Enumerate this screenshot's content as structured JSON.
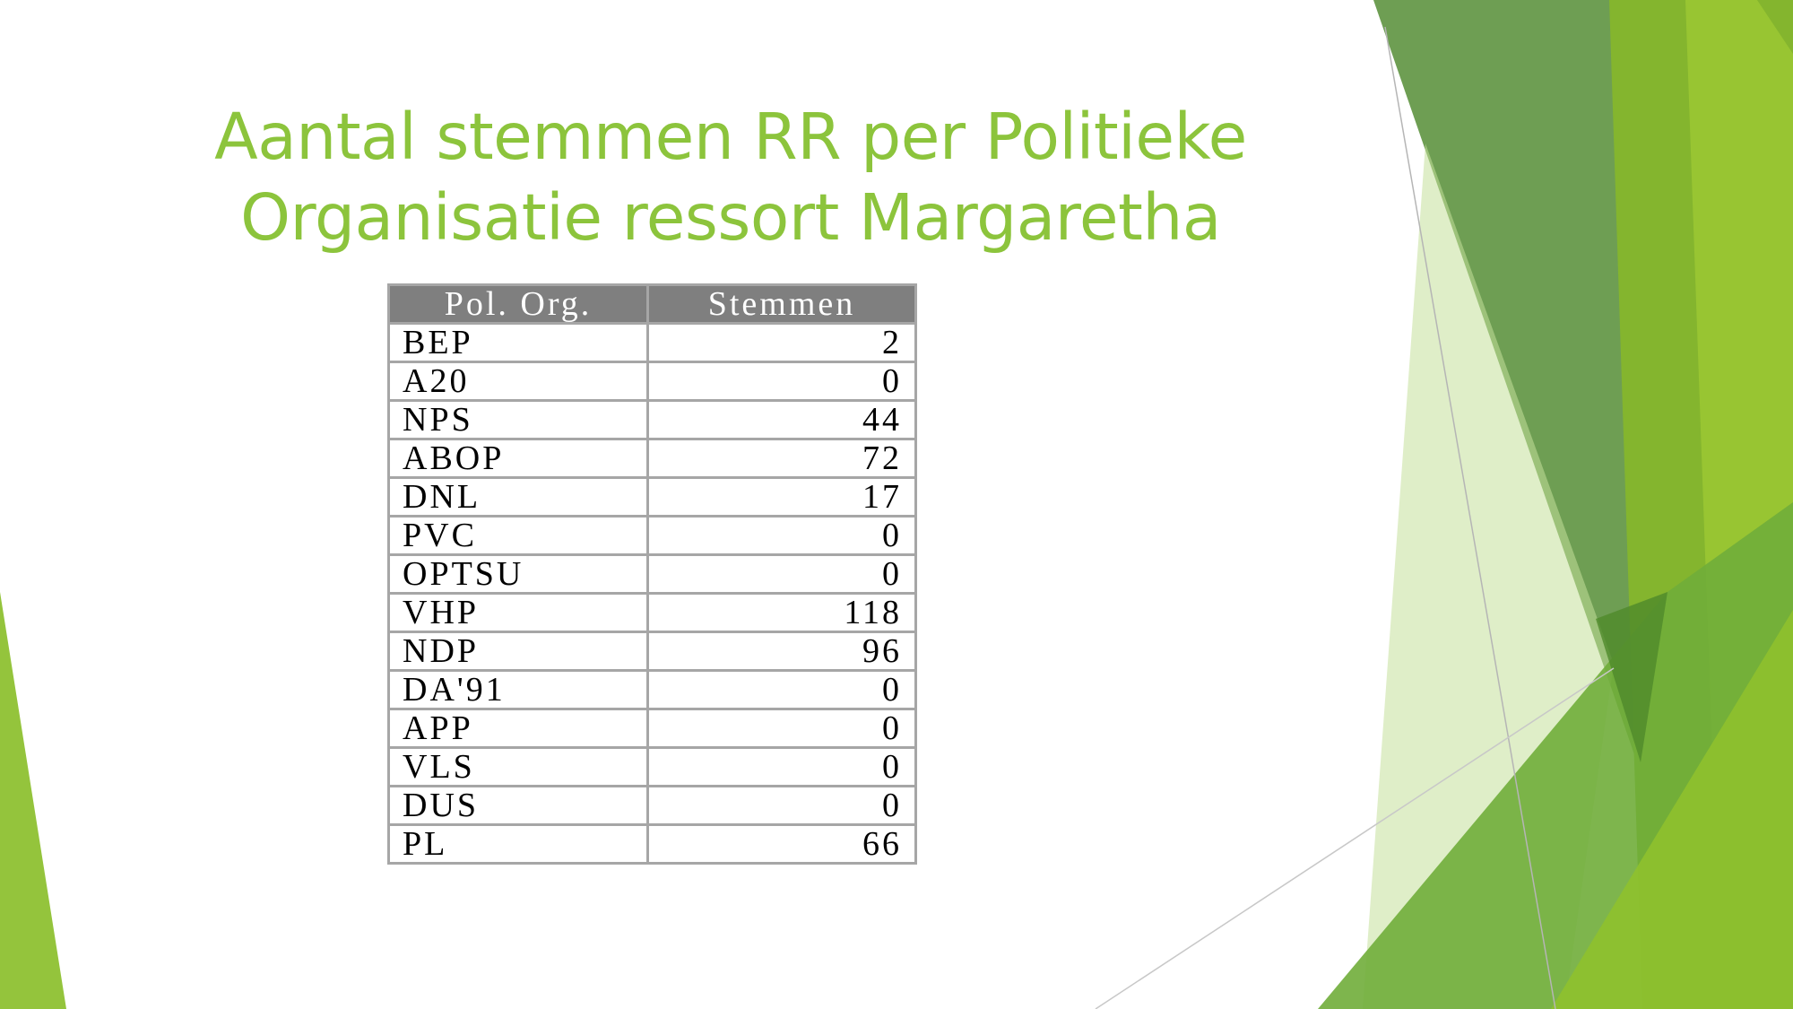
{
  "slide": {
    "title_line1": "Aantal stemmen RR per Politieke",
    "title_line2": "Organisatie ressort Margaretha",
    "accent_color": "#8cc43c"
  },
  "table": {
    "headers": [
      "Pol. Org.",
      "Stemmen"
    ],
    "rows": [
      {
        "party": "BEP",
        "votes": "2"
      },
      {
        "party": "A20",
        "votes": "0"
      },
      {
        "party": "NPS",
        "votes": "44"
      },
      {
        "party": "ABOP",
        "votes": "72"
      },
      {
        "party": "DNL",
        "votes": "17"
      },
      {
        "party": "PVC",
        "votes": "0"
      },
      {
        "party": "OPTSU",
        "votes": "0"
      },
      {
        "party": "VHP",
        "votes": "118"
      },
      {
        "party": "NDP",
        "votes": "96"
      },
      {
        "party": "DA'91",
        "votes": "0"
      },
      {
        "party": "APP",
        "votes": "0"
      },
      {
        "party": "VLS",
        "votes": "0"
      },
      {
        "party": "DUS",
        "votes": "0"
      },
      {
        "party": "PL",
        "votes": "66"
      }
    ]
  }
}
